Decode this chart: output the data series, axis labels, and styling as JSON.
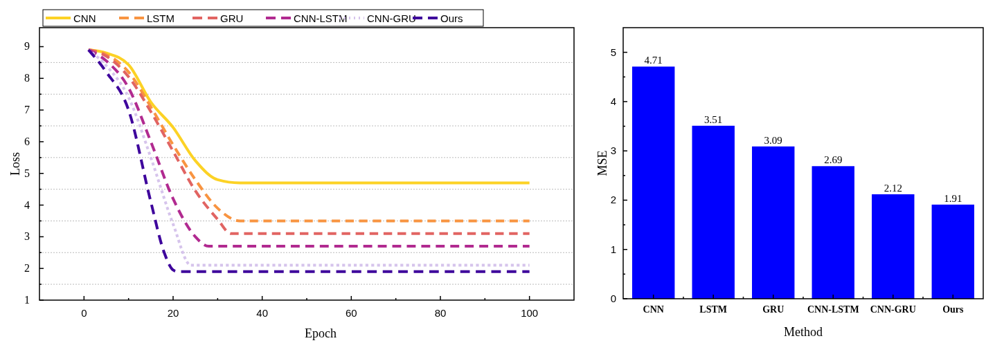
{
  "chart_data": [
    {
      "type": "line",
      "xlabel": "Epoch",
      "ylabel": "Loss",
      "xlim": [
        -10,
        110
      ],
      "xticks": [
        0,
        {
          "value": 10,
          "label": null
        },
        20,
        {
          "value": 30,
          "label": null
        },
        40,
        {
          "value": 50,
          "label": null
        },
        60,
        {
          "value": 70,
          "label": null
        },
        80,
        {
          "value": 90,
          "label": null
        },
        100
      ],
      "ylim": [
        1,
        9.6
      ],
      "yticks": [
        1,
        {
          "value": 1.5,
          "label": null
        },
        2,
        {
          "value": 2.5,
          "label": null
        },
        3,
        {
          "value": 3.5,
          "label": null
        },
        4,
        {
          "value": 4.5,
          "label": null
        },
        5,
        {
          "value": 5.5,
          "label": null
        },
        6,
        {
          "value": 6.5,
          "label": null
        },
        7,
        {
          "value": 7.5,
          "label": null
        },
        8,
        {
          "value": 8.5,
          "label": null
        },
        9
      ],
      "grid": "y",
      "legend": "top",
      "series": [
        {
          "name": "CNN",
          "color": "#fcd225",
          "line_style": "solid",
          "x": [
            1,
            5,
            10,
            15,
            20,
            25,
            30,
            35,
            40,
            60,
            80,
            100
          ],
          "values": [
            8.9,
            8.8,
            8.43,
            7.25,
            6.45,
            5.4,
            4.8,
            4.7,
            4.7,
            4.7,
            4.7,
            4.7
          ]
        },
        {
          "name": "LSTM",
          "color": "#f89441",
          "line_style": "dashed",
          "x": [
            1,
            5,
            10,
            15,
            20,
            25,
            30,
            35,
            40,
            60,
            80,
            100
          ],
          "values": [
            8.9,
            8.75,
            8.2,
            7.1,
            5.9,
            4.8,
            3.9,
            3.5,
            3.5,
            3.5,
            3.5,
            3.5
          ]
        },
        {
          "name": "GRU",
          "color": "#e16462",
          "line_style": "dashed",
          "x": [
            1,
            5,
            10,
            15,
            20,
            25,
            30,
            33,
            40,
            60,
            80,
            100
          ],
          "values": [
            8.9,
            8.7,
            8.05,
            6.95,
            5.7,
            4.45,
            3.55,
            3.1,
            3.1,
            3.1,
            3.1,
            3.1
          ]
        },
        {
          "name": "CNN-LSTM",
          "color": "#b12a90",
          "line_style": "dashed",
          "x": [
            1,
            5,
            10,
            15,
            20,
            25,
            28,
            40,
            60,
            80,
            100
          ],
          "values": [
            8.9,
            8.55,
            7.7,
            6.0,
            4.2,
            3.0,
            2.7,
            2.7,
            2.7,
            2.7,
            2.7
          ]
        },
        {
          "name": "CNN-GRU",
          "color": "#d6c4ec",
          "line_style": "dotted",
          "x": [
            1,
            5,
            10,
            15,
            20,
            24,
            40,
            60,
            80,
            100
          ],
          "values": [
            8.9,
            8.4,
            7.4,
            5.5,
            3.4,
            2.1,
            2.1,
            2.1,
            2.1,
            2.1
          ]
        },
        {
          "name": "Ours",
          "color": "#3e049c",
          "line_style": "dashed",
          "x": [
            1,
            5,
            10,
            15,
            18,
            20,
            21,
            40,
            60,
            80,
            100
          ],
          "values": [
            8.9,
            8.2,
            7.0,
            4.1,
            2.5,
            1.95,
            1.9,
            1.9,
            1.9,
            1.9,
            1.9
          ]
        }
      ]
    },
    {
      "type": "bar",
      "xlabel": "Method",
      "ylabel": "MSE",
      "categories": [
        "CNN",
        "LSTM",
        "GRU",
        "CNN-LSTM",
        "CNN-GRU",
        "Ours"
      ],
      "values": [
        4.71,
        3.51,
        3.09,
        2.69,
        2.12,
        1.91
      ],
      "color": "#0000ff",
      "data_labels": true,
      "ylim": [
        0,
        5.5
      ],
      "yticks": [
        0,
        {
          "value": 0.5,
          "label": null
        },
        1,
        {
          "value": 1.5,
          "label": null
        },
        2,
        {
          "value": 2.5,
          "label": null
        },
        3,
        {
          "value": 3.5,
          "label": null
        },
        4,
        {
          "value": 4.5,
          "label": null
        },
        5
      ]
    }
  ]
}
